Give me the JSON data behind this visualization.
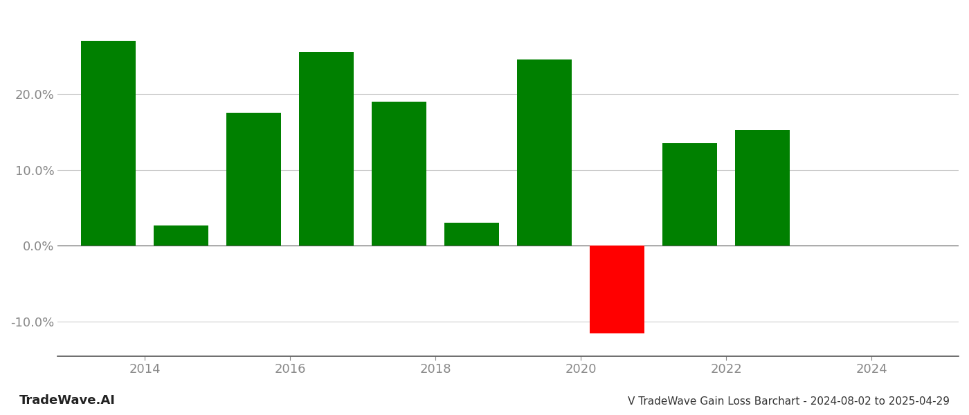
{
  "bar_positions": [
    2013.5,
    2014.5,
    2015.5,
    2016.5,
    2017.5,
    2018.5,
    2019.5,
    2020.5,
    2021.5,
    2022.5
  ],
  "values": [
    0.27,
    0.027,
    0.175,
    0.255,
    0.19,
    0.03,
    0.245,
    -0.115,
    0.135,
    0.152
  ],
  "colors": [
    "#008000",
    "#008000",
    "#008000",
    "#008000",
    "#008000",
    "#008000",
    "#008000",
    "#ff0000",
    "#008000",
    "#008000"
  ],
  "ylim": [
    -0.145,
    0.31
  ],
  "yticks": [
    -0.1,
    0.0,
    0.1,
    0.2
  ],
  "xlim": [
    2012.8,
    2025.2
  ],
  "xticks": [
    2014,
    2016,
    2018,
    2020,
    2022,
    2024
  ],
  "bar_width": 0.75,
  "title": "V TradeWave Gain Loss Barchart - 2024-08-02 to 2025-04-29",
  "watermark": "TradeWave.AI",
  "bg_color": "#ffffff",
  "grid_color": "#cccccc",
  "axis_color": "#555555",
  "tick_color": "#888888",
  "title_color": "#333333",
  "watermark_color": "#222222",
  "title_fontsize": 11,
  "watermark_fontsize": 13,
  "tick_fontsize": 13
}
